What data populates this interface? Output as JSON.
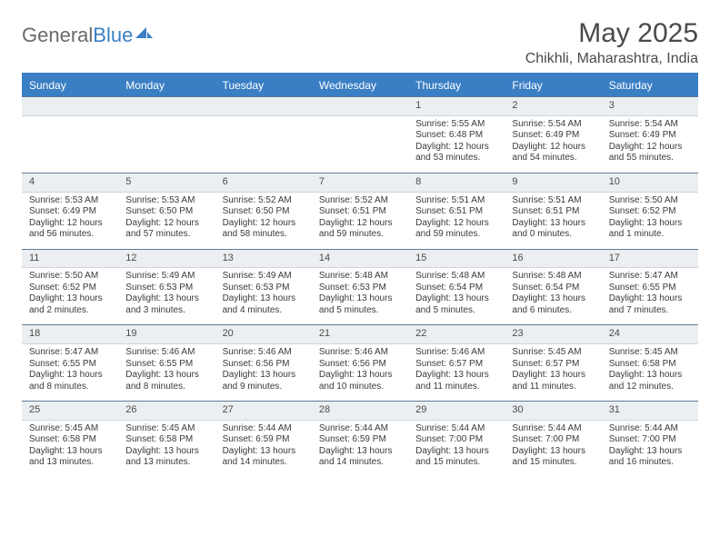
{
  "brand": {
    "part1": "General",
    "part2": "Blue"
  },
  "title": "May 2025",
  "location": "Chikhli, Maharashtra, India",
  "colors": {
    "accent": "#3a7fc4",
    "header_text": "#ffffff",
    "daynum_bg": "#eceff1",
    "daynum_border_top": "#5e7a95",
    "body_text": "#3a3a3a",
    "title_text": "#4a4a4a",
    "logo_gray": "#6a6a6a"
  },
  "weekdays": [
    "Sunday",
    "Monday",
    "Tuesday",
    "Wednesday",
    "Thursday",
    "Friday",
    "Saturday"
  ],
  "weeks": [
    [
      {
        "n": "",
        "l1": "",
        "l2": "",
        "l3": "",
        "l4": ""
      },
      {
        "n": "",
        "l1": "",
        "l2": "",
        "l3": "",
        "l4": ""
      },
      {
        "n": "",
        "l1": "",
        "l2": "",
        "l3": "",
        "l4": ""
      },
      {
        "n": "",
        "l1": "",
        "l2": "",
        "l3": "",
        "l4": ""
      },
      {
        "n": "1",
        "l1": "Sunrise: 5:55 AM",
        "l2": "Sunset: 6:48 PM",
        "l3": "Daylight: 12 hours",
        "l4": "and 53 minutes."
      },
      {
        "n": "2",
        "l1": "Sunrise: 5:54 AM",
        "l2": "Sunset: 6:49 PM",
        "l3": "Daylight: 12 hours",
        "l4": "and 54 minutes."
      },
      {
        "n": "3",
        "l1": "Sunrise: 5:54 AM",
        "l2": "Sunset: 6:49 PM",
        "l3": "Daylight: 12 hours",
        "l4": "and 55 minutes."
      }
    ],
    [
      {
        "n": "4",
        "l1": "Sunrise: 5:53 AM",
        "l2": "Sunset: 6:49 PM",
        "l3": "Daylight: 12 hours",
        "l4": "and 56 minutes."
      },
      {
        "n": "5",
        "l1": "Sunrise: 5:53 AM",
        "l2": "Sunset: 6:50 PM",
        "l3": "Daylight: 12 hours",
        "l4": "and 57 minutes."
      },
      {
        "n": "6",
        "l1": "Sunrise: 5:52 AM",
        "l2": "Sunset: 6:50 PM",
        "l3": "Daylight: 12 hours",
        "l4": "and 58 minutes."
      },
      {
        "n": "7",
        "l1": "Sunrise: 5:52 AM",
        "l2": "Sunset: 6:51 PM",
        "l3": "Daylight: 12 hours",
        "l4": "and 59 minutes."
      },
      {
        "n": "8",
        "l1": "Sunrise: 5:51 AM",
        "l2": "Sunset: 6:51 PM",
        "l3": "Daylight: 12 hours",
        "l4": "and 59 minutes."
      },
      {
        "n": "9",
        "l1": "Sunrise: 5:51 AM",
        "l2": "Sunset: 6:51 PM",
        "l3": "Daylight: 13 hours",
        "l4": "and 0 minutes."
      },
      {
        "n": "10",
        "l1": "Sunrise: 5:50 AM",
        "l2": "Sunset: 6:52 PM",
        "l3": "Daylight: 13 hours",
        "l4": "and 1 minute."
      }
    ],
    [
      {
        "n": "11",
        "l1": "Sunrise: 5:50 AM",
        "l2": "Sunset: 6:52 PM",
        "l3": "Daylight: 13 hours",
        "l4": "and 2 minutes."
      },
      {
        "n": "12",
        "l1": "Sunrise: 5:49 AM",
        "l2": "Sunset: 6:53 PM",
        "l3": "Daylight: 13 hours",
        "l4": "and 3 minutes."
      },
      {
        "n": "13",
        "l1": "Sunrise: 5:49 AM",
        "l2": "Sunset: 6:53 PM",
        "l3": "Daylight: 13 hours",
        "l4": "and 4 minutes."
      },
      {
        "n": "14",
        "l1": "Sunrise: 5:48 AM",
        "l2": "Sunset: 6:53 PM",
        "l3": "Daylight: 13 hours",
        "l4": "and 5 minutes."
      },
      {
        "n": "15",
        "l1": "Sunrise: 5:48 AM",
        "l2": "Sunset: 6:54 PM",
        "l3": "Daylight: 13 hours",
        "l4": "and 5 minutes."
      },
      {
        "n": "16",
        "l1": "Sunrise: 5:48 AM",
        "l2": "Sunset: 6:54 PM",
        "l3": "Daylight: 13 hours",
        "l4": "and 6 minutes."
      },
      {
        "n": "17",
        "l1": "Sunrise: 5:47 AM",
        "l2": "Sunset: 6:55 PM",
        "l3": "Daylight: 13 hours",
        "l4": "and 7 minutes."
      }
    ],
    [
      {
        "n": "18",
        "l1": "Sunrise: 5:47 AM",
        "l2": "Sunset: 6:55 PM",
        "l3": "Daylight: 13 hours",
        "l4": "and 8 minutes."
      },
      {
        "n": "19",
        "l1": "Sunrise: 5:46 AM",
        "l2": "Sunset: 6:55 PM",
        "l3": "Daylight: 13 hours",
        "l4": "and 8 minutes."
      },
      {
        "n": "20",
        "l1": "Sunrise: 5:46 AM",
        "l2": "Sunset: 6:56 PM",
        "l3": "Daylight: 13 hours",
        "l4": "and 9 minutes."
      },
      {
        "n": "21",
        "l1": "Sunrise: 5:46 AM",
        "l2": "Sunset: 6:56 PM",
        "l3": "Daylight: 13 hours",
        "l4": "and 10 minutes."
      },
      {
        "n": "22",
        "l1": "Sunrise: 5:46 AM",
        "l2": "Sunset: 6:57 PM",
        "l3": "Daylight: 13 hours",
        "l4": "and 11 minutes."
      },
      {
        "n": "23",
        "l1": "Sunrise: 5:45 AM",
        "l2": "Sunset: 6:57 PM",
        "l3": "Daylight: 13 hours",
        "l4": "and 11 minutes."
      },
      {
        "n": "24",
        "l1": "Sunrise: 5:45 AM",
        "l2": "Sunset: 6:58 PM",
        "l3": "Daylight: 13 hours",
        "l4": "and 12 minutes."
      }
    ],
    [
      {
        "n": "25",
        "l1": "Sunrise: 5:45 AM",
        "l2": "Sunset: 6:58 PM",
        "l3": "Daylight: 13 hours",
        "l4": "and 13 minutes."
      },
      {
        "n": "26",
        "l1": "Sunrise: 5:45 AM",
        "l2": "Sunset: 6:58 PM",
        "l3": "Daylight: 13 hours",
        "l4": "and 13 minutes."
      },
      {
        "n": "27",
        "l1": "Sunrise: 5:44 AM",
        "l2": "Sunset: 6:59 PM",
        "l3": "Daylight: 13 hours",
        "l4": "and 14 minutes."
      },
      {
        "n": "28",
        "l1": "Sunrise: 5:44 AM",
        "l2": "Sunset: 6:59 PM",
        "l3": "Daylight: 13 hours",
        "l4": "and 14 minutes."
      },
      {
        "n": "29",
        "l1": "Sunrise: 5:44 AM",
        "l2": "Sunset: 7:00 PM",
        "l3": "Daylight: 13 hours",
        "l4": "and 15 minutes."
      },
      {
        "n": "30",
        "l1": "Sunrise: 5:44 AM",
        "l2": "Sunset: 7:00 PM",
        "l3": "Daylight: 13 hours",
        "l4": "and 15 minutes."
      },
      {
        "n": "31",
        "l1": "Sunrise: 5:44 AM",
        "l2": "Sunset: 7:00 PM",
        "l3": "Daylight: 13 hours",
        "l4": "and 16 minutes."
      }
    ]
  ]
}
